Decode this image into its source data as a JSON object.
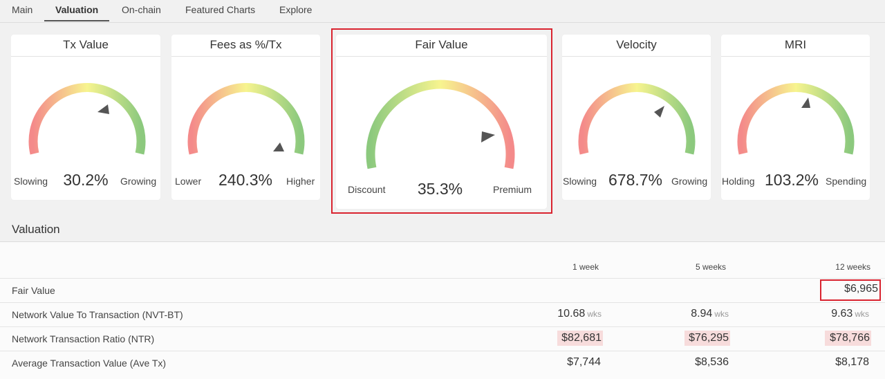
{
  "tabs": [
    "Main",
    "Valuation",
    "On-chain",
    "Featured Charts",
    "Explore"
  ],
  "gauges": [
    {
      "title": "Tx Value",
      "low": "Slowing",
      "high": "Growing",
      "value": "30.2%"
    },
    {
      "title": "Fees as %/Tx",
      "low": "Lower",
      "high": "Higher",
      "value": "240.3%"
    },
    {
      "title": "Fair Value",
      "low": "Discount",
      "high": "Premium",
      "value": "35.3%"
    },
    {
      "title": "Velocity",
      "low": "Slowing",
      "high": "Growing",
      "value": "678.7%"
    },
    {
      "title": "MRI",
      "low": "Holding",
      "high": "Spending",
      "value": "103.2%"
    }
  ],
  "valuation": {
    "title": "Valuation",
    "columns": [
      "1 week",
      "5 weeks",
      "12 weeks"
    ],
    "rows": [
      {
        "label": "Fair Value",
        "values": [
          "",
          "",
          "$6,965"
        ]
      },
      {
        "label": "Network Value To Transaction (NVT-BT)",
        "values": [
          "10.68",
          "8.94",
          "9.63"
        ],
        "unit": "wks"
      },
      {
        "label": "Network Transaction Ratio (NTR)",
        "values": [
          "$82,681",
          "$76,295",
          "$78,766"
        ]
      },
      {
        "label": "Average Transaction Value (Ave Tx)",
        "values": [
          "$7,744",
          "$8,536",
          "$8,178"
        ]
      }
    ]
  },
  "colors": {
    "highlight": "#d9232f",
    "gauge_red": "#f48a8a",
    "gauge_yellow": "#f7f48f",
    "gauge_green": "#8cc97e",
    "ntr_highlight": "#f7dcdc"
  }
}
